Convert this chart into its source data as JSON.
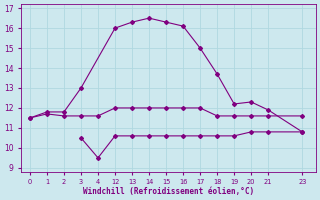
{
  "xlabel": "Windchill (Refroidissement éolien,°C)",
  "bg_color": "#cde8ee",
  "line_color": "#800080",
  "grid_color": "#b0d8e0",
  "axis_color": "#800080",
  "tick_color": "#800080",
  "label_color": "#800080",
  "x_ticks": [
    0,
    1,
    2,
    3,
    4,
    12,
    13,
    14,
    15,
    16,
    17,
    18,
    19,
    20,
    21,
    23
  ],
  "x_tick_pos": [
    0,
    1,
    2,
    3,
    4,
    5,
    6,
    7,
    8,
    9,
    10,
    11,
    12,
    13,
    14,
    16
  ],
  "ylim": [
    8.8,
    17.2
  ],
  "yticks": [
    9,
    10,
    11,
    12,
    13,
    14,
    15,
    16,
    17
  ],
  "line1_x_pos": [
    0,
    1,
    2,
    3,
    5,
    6,
    7,
    8,
    9,
    10,
    11,
    12,
    13,
    14,
    16
  ],
  "line1_y": [
    11.5,
    11.8,
    11.8,
    13.0,
    16.0,
    16.3,
    16.5,
    16.3,
    16.1,
    15.0,
    13.7,
    12.2,
    12.3,
    11.9,
    10.8
  ],
  "line2_x_pos": [
    0,
    1,
    2,
    3,
    4,
    5,
    6,
    7,
    8,
    9,
    10,
    11,
    12,
    13,
    14,
    16
  ],
  "line2_y": [
    11.5,
    11.7,
    11.6,
    11.6,
    11.6,
    12.0,
    12.0,
    12.0,
    12.0,
    12.0,
    12.0,
    11.6,
    11.6,
    11.6,
    11.6,
    11.6
  ],
  "line3_x_pos": [
    3,
    4,
    5,
    6,
    7,
    8,
    9,
    10,
    11,
    12,
    13,
    14,
    16
  ],
  "line3_y": [
    10.5,
    9.5,
    10.6,
    10.6,
    10.6,
    10.6,
    10.6,
    10.6,
    10.6,
    10.6,
    10.8,
    10.8,
    10.8
  ]
}
